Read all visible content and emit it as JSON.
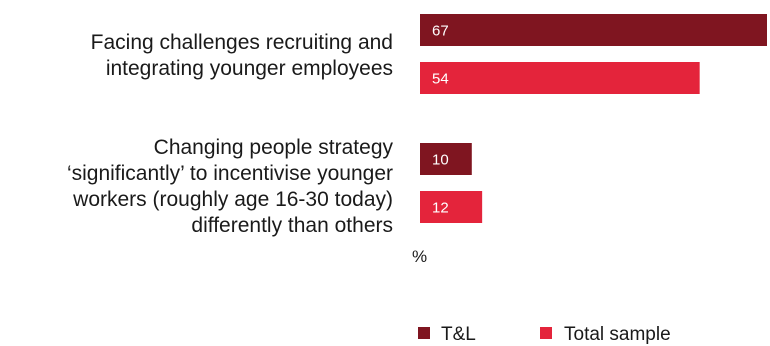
{
  "chart_data": {
    "type": "bar",
    "orientation": "horizontal",
    "unit_label": "%",
    "xlim": [
      0,
      67
    ],
    "categories": [
      [
        "Facing challenges recruiting and",
        "integrating younger employees"
      ],
      [
        "Changing people strategy",
        "‘significantly’ to incentivise younger",
        "workers (roughly age 16-30 today)",
        "differently than others"
      ]
    ],
    "series": [
      {
        "name": "T&L",
        "values": [
          67,
          10
        ],
        "color": "#7f1520"
      },
      {
        "name": "Total sample",
        "values": [
          54,
          12
        ],
        "color": "#e4243b"
      }
    ],
    "legend_position": "bottom",
    "grid": false
  }
}
